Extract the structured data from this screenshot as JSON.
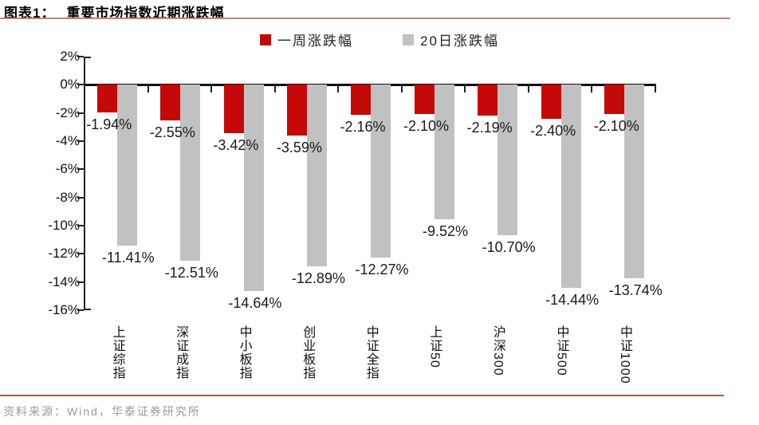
{
  "title": {
    "prefix": "图表1：",
    "text": "重要市场指数近期涨跌幅"
  },
  "legend": [
    {
      "name": "一周涨跌幅",
      "color": "#c50808"
    },
    {
      "name": "20日涨跌幅",
      "color": "#c2c1c1"
    }
  ],
  "chart_data": {
    "type": "bar",
    "title": "重要市场指数近期涨跌幅",
    "categories": [
      "上证综指",
      "深证成指",
      "中小板指",
      "创业板指",
      "中证全指",
      "上证50",
      "沪深300",
      "中证500",
      "中证1000"
    ],
    "series": [
      {
        "name": "一周涨跌幅",
        "color": "#c50808",
        "values": [
          -1.94,
          -2.55,
          -3.42,
          -3.59,
          -2.16,
          -2.1,
          -2.19,
          -2.4,
          -2.1
        ]
      },
      {
        "name": "20日涨跌幅",
        "color": "#c2c1c1",
        "values": [
          -11.41,
          -12.51,
          -14.64,
          -12.89,
          -12.27,
          -9.52,
          -10.7,
          -14.44,
          -13.74
        ]
      }
    ],
    "ylim": [
      -16,
      2
    ],
    "ytick_step": 2,
    "ytick_labels": [
      "2%",
      "0%",
      "-2%",
      "-4%",
      "-6%",
      "-8%",
      "-10%",
      "-12%",
      "-14%",
      "-16%"
    ],
    "value_label_format": "{value}%",
    "grid": false,
    "legend_position": "top",
    "axis_color": "#111111"
  },
  "footer": {
    "source": "资料来源：Wind，华泰证券研究所"
  }
}
